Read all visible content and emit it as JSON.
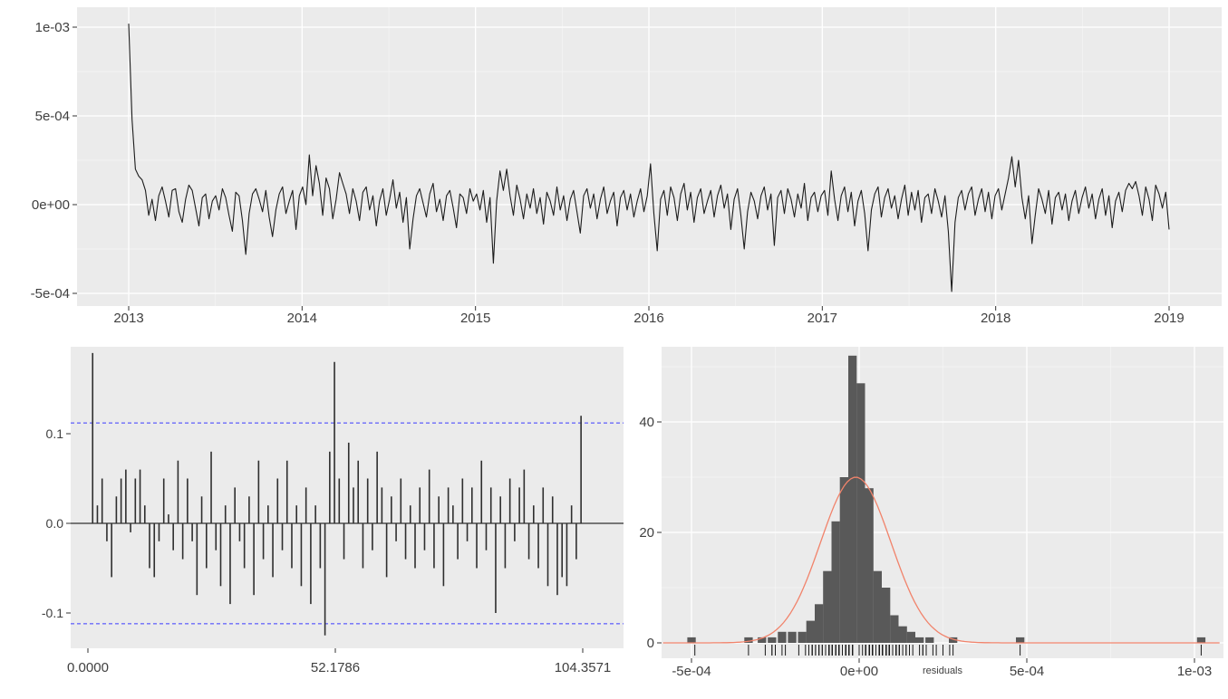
{
  "figure": {
    "background": "#FFFFFF",
    "panel_bg": "#EBEBEB",
    "grid_major": "#FFFFFF",
    "grid_minor": "#F6F6F6",
    "text": "#404040",
    "series_line": "#1C1C1C",
    "acf_bar": "#2E2E2E",
    "conf_line": "#3A3AFF",
    "hist_bar": "#595959",
    "density_curve": "#F1836B",
    "rug": "#1A1A1A"
  },
  "chart_data": [
    {
      "id": "residual-time-series",
      "type": "line",
      "title": "",
      "xlabel": "",
      "ylabel": "",
      "x_start": 2013.0,
      "x_end": 2019.0,
      "x_tick_labels": [
        "2013",
        "2014",
        "2015",
        "2016",
        "2017",
        "2018",
        "2019"
      ],
      "x_tick_values": [
        2013,
        2014,
        2015,
        2016,
        2017,
        2018,
        2019
      ],
      "x_minor_values": [
        2013.5,
        2014.5,
        2015.5,
        2016.5,
        2017.5,
        2018.5
      ],
      "y_tick_labels": [
        "1e-03",
        "5e-04",
        "0e+00",
        "-5e-04"
      ],
      "y_tick_values_e4": [
        10,
        5,
        0,
        -5
      ],
      "y_minor_values_e4": [
        7.5,
        2.5,
        -2.5
      ],
      "unit_scale": "1e-04",
      "values_e4": [
        10.2,
        4.8,
        2.0,
        1.6,
        1.4,
        0.8,
        -0.6,
        0.3,
        -0.9,
        0.5,
        1.0,
        0.2,
        -0.7,
        0.8,
        0.9,
        -0.4,
        -1.0,
        0.3,
        1.1,
        0.8,
        -0.2,
        -1.2,
        0.4,
        0.6,
        -0.8,
        0.2,
        0.5,
        -0.3,
        0.9,
        0.4,
        -0.6,
        -1.5,
        0.7,
        0.5,
        -0.9,
        -2.8,
        -0.5,
        0.6,
        0.9,
        0.3,
        -0.4,
        0.8,
        -0.7,
        -1.8,
        -0.3,
        0.6,
        1.0,
        -0.5,
        0.2,
        0.8,
        -1.4,
        0.5,
        1.0,
        0.0,
        2.8,
        0.5,
        2.2,
        1.2,
        -0.6,
        1.5,
        0.9,
        -0.8,
        0.3,
        1.8,
        1.2,
        0.6,
        -0.5,
        0.9,
        0.2,
        -0.9,
        0.7,
        1.0,
        -0.3,
        0.5,
        -1.2,
        0.2,
        0.9,
        -0.6,
        0.3,
        1.4,
        -0.2,
        0.7,
        -1.0,
        0.4,
        -2.5,
        -0.8,
        0.5,
        0.9,
        0.1,
        -0.7,
        0.6,
        1.2,
        -0.4,
        0.3,
        -0.9,
        0.5,
        0.8,
        -0.2,
        -1.3,
        0.6,
        0.4,
        -0.5,
        0.9,
        0.2,
        0.6,
        -0.3,
        0.8,
        -1.0,
        0.4,
        -3.3,
        0.2,
        1.9,
        0.8,
        2.0,
        0.5,
        -0.6,
        1.1,
        0.3,
        -0.8,
        0.6,
        -0.2,
        0.9,
        -0.5,
        0.4,
        -1.1,
        0.7,
        0.2,
        -0.6,
        1.0,
        -0.3,
        0.5,
        -0.9,
        0.3,
        0.8,
        -0.4,
        -1.6,
        0.5,
        0.9,
        -0.2,
        0.6,
        -0.8,
        0.3,
        1.0,
        -0.5,
        0.2,
        0.7,
        -1.2,
        0.4,
        0.8,
        -0.3,
        0.6,
        -0.7,
        0.2,
        0.9,
        -0.4,
        0.5,
        2.3,
        -0.5,
        -2.6,
        0.3,
        0.8,
        -0.6,
        1.0,
        0.4,
        -0.9,
        0.6,
        1.2,
        -0.3,
        0.7,
        -1.0,
        0.4,
        0.9,
        -0.5,
        0.2,
        0.8,
        -0.7,
        0.5,
        1.1,
        -0.2,
        0.6,
        -1.4,
        0.3,
        0.9,
        -0.6,
        -2.5,
        -0.4,
        0.7,
        0.2,
        -0.8,
        0.5,
        1.0,
        -0.3,
        0.6,
        -2.3,
        0.4,
        0.8,
        -0.5,
        0.9,
        0.3,
        -0.7,
        0.6,
        -0.2,
        1.2,
        -0.9,
        0.4,
        0.7,
        -0.4,
        0.5,
        0.8,
        -0.6,
        1.9,
        0.3,
        -0.9,
        0.5,
        1.0,
        -0.4,
        0.7,
        -1.2,
        0.2,
        0.8,
        -0.5,
        -2.6,
        -0.3,
        0.6,
        1.0,
        -0.7,
        0.4,
        0.9,
        -0.2,
        0.5,
        -0.8,
        0.3,
        1.1,
        -0.6,
        0.7,
        -0.3,
        0.8,
        -1.0,
        0.4,
        0.6,
        -0.5,
        0.9,
        0.2,
        -0.7,
        0.5,
        -1.5,
        -4.9,
        -1.0,
        0.4,
        0.8,
        -0.3,
        0.6,
        1.0,
        -0.6,
        0.3,
        0.9,
        -0.4,
        0.7,
        -0.8,
        0.5,
        0.9,
        -0.3,
        0.6,
        1.5,
        2.7,
        1.0,
        2.5,
        0.4,
        -0.8,
        0.5,
        -2.2,
        -0.6,
        0.9,
        0.3,
        -0.5,
        0.8,
        -1.1,
        0.4,
        0.7,
        -0.3,
        0.6,
        -0.9,
        0.2,
        0.8,
        -0.5,
        0.4,
        1.0,
        -0.2,
        0.6,
        -0.8,
        0.3,
        0.9,
        -0.6,
        0.5,
        -1.3,
        0.2,
        0.7,
        -0.4,
        0.8,
        1.2,
        0.9,
        1.3,
        0.5,
        -0.6,
        1.0,
        0.3,
        -0.9,
        1.1,
        0.6,
        -0.2,
        0.7,
        -1.4
      ]
    },
    {
      "id": "acf",
      "type": "bar",
      "title": "",
      "xlabel": "",
      "ylabel": "",
      "x_tick_labels": [
        "0.0000",
        "52.1786",
        "104.3571"
      ],
      "x_tick_values": [
        0,
        52.1786,
        104.3571
      ],
      "y_tick_labels": [
        "0.1",
        "0.0",
        "-0.1"
      ],
      "y_tick_values": [
        0.1,
        0,
        -0.1
      ],
      "confidence_bound": 0.112,
      "lag_start": 1,
      "values": [
        0.19,
        0.02,
        0.05,
        -0.02,
        -0.06,
        0.03,
        0.05,
        0.06,
        -0.01,
        0.05,
        0.06,
        0.02,
        -0.05,
        -0.06,
        -0.02,
        0.05,
        0.01,
        -0.03,
        0.07,
        -0.04,
        0.05,
        -0.02,
        -0.08,
        0.03,
        -0.05,
        0.08,
        -0.03,
        -0.07,
        0.02,
        -0.09,
        0.04,
        -0.02,
        -0.05,
        0.03,
        -0.08,
        0.07,
        -0.04,
        0.02,
        -0.06,
        0.05,
        -0.03,
        0.07,
        -0.05,
        0.02,
        -0.07,
        0.04,
        -0.09,
        0.02,
        -0.05,
        -0.125,
        0.08,
        0.18,
        0.05,
        -0.04,
        0.09,
        0.04,
        0.07,
        -0.05,
        0.05,
        -0.03,
        0.08,
        0.04,
        -0.06,
        0.03,
        -0.02,
        0.05,
        -0.04,
        0.02,
        -0.05,
        0.04,
        -0.03,
        0.06,
        -0.05,
        0.03,
        -0.07,
        0.04,
        0.02,
        -0.04,
        0.05,
        -0.02,
        0.04,
        -0.05,
        0.07,
        -0.03,
        0.04,
        -0.1,
        0.03,
        -0.05,
        0.05,
        -0.02,
        0.04,
        0.06,
        -0.04,
        0.02,
        -0.05,
        0.04,
        -0.07,
        0.03,
        -0.08,
        -0.06,
        -0.07,
        0.02,
        -0.04,
        0.12
      ]
    },
    {
      "id": "residual-histogram",
      "type": "histogram",
      "title": "",
      "xlabel": "residuals",
      "ylabel": "",
      "x_tick_labels": [
        "-5e-04",
        "0e+00",
        "5e-04",
        "1e-03"
      ],
      "x_tick_values_e4": [
        -5,
        0,
        5,
        10
      ],
      "x_minor_values_e4": [
        -2.5,
        2.5,
        7.5
      ],
      "y_tick_labels": [
        "0",
        "20",
        "40"
      ],
      "y_tick_values": [
        0,
        20,
        40
      ],
      "y_minor_values": [
        10,
        30,
        50
      ],
      "bin_width_e4": 0.25,
      "bins": [
        [
          -5.0,
          1
        ],
        [
          -3.3,
          1
        ],
        [
          -2.9,
          1
        ],
        [
          -2.6,
          1
        ],
        [
          -2.3,
          2
        ],
        [
          -2.0,
          2
        ],
        [
          -1.7,
          2
        ],
        [
          -1.45,
          4
        ],
        [
          -1.2,
          7
        ],
        [
          -0.95,
          13
        ],
        [
          -0.7,
          22
        ],
        [
          -0.45,
          30
        ],
        [
          -0.2,
          52
        ],
        [
          0.05,
          47
        ],
        [
          0.3,
          28
        ],
        [
          0.55,
          13
        ],
        [
          0.8,
          10
        ],
        [
          1.05,
          5
        ],
        [
          1.3,
          3
        ],
        [
          1.55,
          2
        ],
        [
          1.8,
          1
        ],
        [
          2.1,
          1
        ],
        [
          2.8,
          1
        ],
        [
          4.8,
          1
        ],
        [
          10.2,
          1
        ]
      ],
      "normal_curve": {
        "mean_e4": -0.1,
        "sd_e4": 1.05,
        "peak": 30
      },
      "rug": "from-series-values"
    }
  ]
}
